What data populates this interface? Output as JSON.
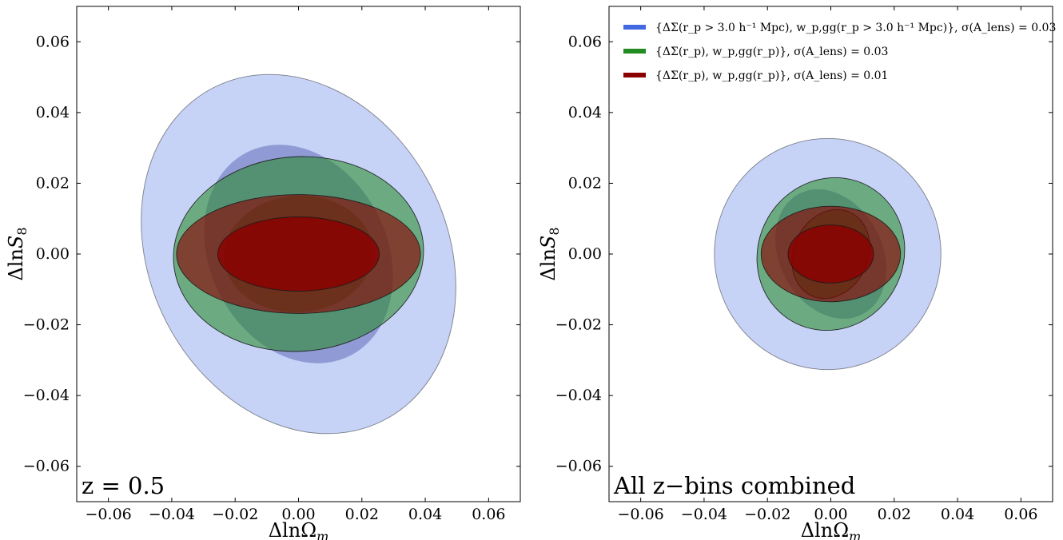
{
  "chart_data": [
    {
      "type": "scatter",
      "subtype": "fisher-ellipses",
      "xlabel": "Δln Ω_m",
      "ylabel": "Δln S_8",
      "xlim": [
        -0.07,
        0.07
      ],
      "ylim": [
        -0.07,
        0.07
      ],
      "xticks": [
        -0.06,
        -0.04,
        -0.02,
        0.0,
        0.02,
        0.04,
        0.06
      ],
      "yticks": [
        -0.06,
        -0.04,
        -0.02,
        0.0,
        0.02,
        0.04,
        0.06
      ],
      "xtick_labels": [
        "−0.06",
        "−0.04",
        "−0.02",
        "0.00",
        "0.02",
        "0.04",
        "0.06"
      ],
      "ytick_labels": [
        "−0.06",
        "−0.04",
        "−0.02",
        "0.00",
        "0.02",
        "0.04",
        "0.06"
      ],
      "annotation": "z = 0.5",
      "grid": false,
      "ellipses": [
        {
          "series": 0,
          "level": "outer",
          "cx": 0.0,
          "cy": 0.0,
          "a": 0.059,
          "b": 0.042,
          "angle_deg": 117,
          "fill": "#4169e1",
          "opacity": 0.3,
          "edge": true
        },
        {
          "series": 0,
          "level": "inner",
          "cx": 0.0,
          "cy": 0.0,
          "a": 0.036,
          "b": 0.025,
          "angle_deg": 117,
          "fill": "#3a3fa0",
          "opacity": 0.38,
          "edge": false
        },
        {
          "series": 1,
          "level": "outer",
          "cx": 0.0,
          "cy": 0.0,
          "a": 0.0395,
          "b": 0.0275,
          "angle_deg": 4,
          "fill": "#228b22",
          "opacity": 0.55,
          "edge": true
        },
        {
          "series": 1,
          "level": "inner",
          "cx": 0.0,
          "cy": 0.0,
          "a": 0.0235,
          "b": 0.0165,
          "angle_deg": 4,
          "fill": "#1b6e1b",
          "opacity": 0.45,
          "edge": false
        },
        {
          "series": 2,
          "level": "outer",
          "cx": 0.0,
          "cy": 0.0,
          "a": 0.0385,
          "b": 0.0168,
          "angle_deg": 0,
          "fill": "#8b0000",
          "opacity": 0.62,
          "edge": true
        },
        {
          "series": 2,
          "level": "inner",
          "cx": 0.0,
          "cy": 0.0,
          "a": 0.0255,
          "b": 0.0105,
          "angle_deg": 0,
          "fill": "#8b0000",
          "opacity": 0.82,
          "edge": true
        }
      ]
    },
    {
      "type": "scatter",
      "subtype": "fisher-ellipses",
      "xlabel": "Δln Ω_m",
      "ylabel": "Δln S_8",
      "xlim": [
        -0.07,
        0.07
      ],
      "ylim": [
        -0.07,
        0.07
      ],
      "xticks": [
        -0.06,
        -0.04,
        -0.02,
        0.0,
        0.02,
        0.04,
        0.06
      ],
      "yticks": [
        -0.06,
        -0.04,
        -0.02,
        0.0,
        0.02,
        0.04,
        0.06
      ],
      "xtick_labels": [
        "−0.06",
        "−0.04",
        "−0.02",
        "0.00",
        "0.02",
        "0.04",
        "0.06"
      ],
      "ytick_labels": [
        "−0.06",
        "−0.04",
        "−0.02",
        "0.00",
        "0.02",
        "0.04",
        "0.06"
      ],
      "annotation": "All z−bins combined",
      "grid": false,
      "legend_placement": "top-left",
      "series": [
        {
          "name": "{ΔΣ(r_p > 3.0 h⁻¹ Mpc), w_p,gg(r_p > 3.0 h⁻¹ Mpc)}, σ(A_lens) = 0.03",
          "color": "#4169e1"
        },
        {
          "name": "{ΔΣ(r_p), w_p,gg(r_p)}, σ(A_lens) = 0.03",
          "color": "#228b22"
        },
        {
          "name": "{ΔΣ(r_p), w_p,gg(r_p)}, σ(A_lens) = 0.01",
          "color": "#8b0000"
        }
      ],
      "ellipses": [
        {
          "series": 0,
          "level": "outer",
          "cx": -0.001,
          "cy": 0.0,
          "a": 0.0365,
          "b": 0.032,
          "angle_deg": 90,
          "fill": "#4169e1",
          "opacity": 0.3,
          "edge": true
        },
        {
          "series": 0,
          "level": "inner",
          "cx": 0.0,
          "cy": 0.0,
          "a": 0.0215,
          "b": 0.0145,
          "angle_deg": 118,
          "fill": "#3a3fa0",
          "opacity": 0.38,
          "edge": false
        },
        {
          "series": 1,
          "level": "outer",
          "cx": 0.0,
          "cy": 0.0,
          "a": 0.0245,
          "b": 0.0205,
          "angle_deg": 60,
          "fill": "#228b22",
          "opacity": 0.55,
          "edge": true
        },
        {
          "series": 1,
          "level": "inner",
          "cx": 0.0,
          "cy": 0.0,
          "a": 0.0145,
          "b": 0.0105,
          "angle_deg": 65,
          "fill": "#1b6e1b",
          "opacity": 0.55,
          "edge": true
        },
        {
          "series": 2,
          "level": "outer",
          "cx": 0.0,
          "cy": 0.0,
          "a": 0.022,
          "b": 0.0135,
          "angle_deg": 0,
          "fill": "#8b0000",
          "opacity": 0.62,
          "edge": true
        },
        {
          "series": 2,
          "level": "inner",
          "cx": 0.0,
          "cy": 0.0,
          "a": 0.0135,
          "b": 0.0082,
          "angle_deg": 0,
          "fill": "#8b0000",
          "opacity": 0.82,
          "edge": true
        }
      ]
    }
  ]
}
